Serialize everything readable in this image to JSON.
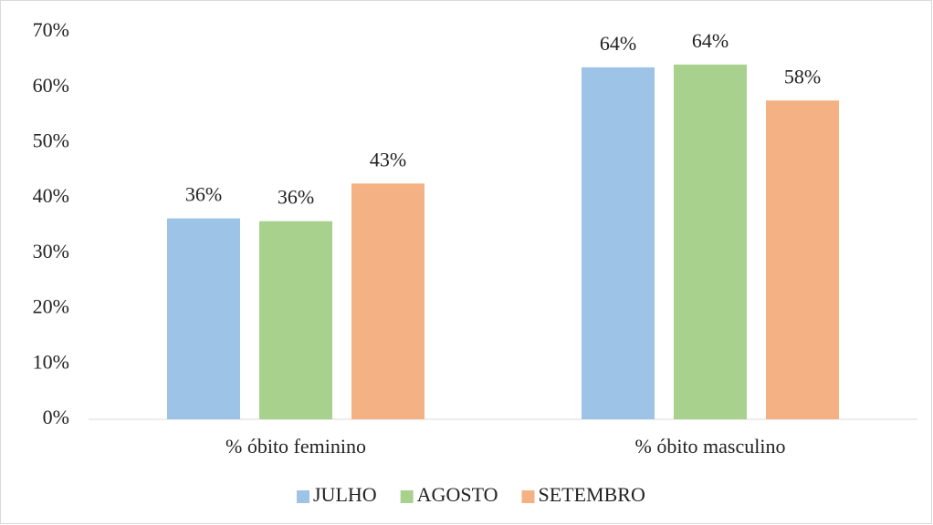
{
  "chart_data": {
    "type": "bar",
    "categories": [
      "% óbito feminino",
      "% óbito masculino"
    ],
    "series": [
      {
        "name": "JULHO",
        "color": "#9dc3e6",
        "values": [
          36.3,
          63.6
        ],
        "value_labels": [
          "36%",
          "64%"
        ]
      },
      {
        "name": "AGOSTO",
        "color": "#a9d18e",
        "values": [
          35.8,
          64.1
        ],
        "value_labels": [
          "36%",
          "64%"
        ]
      },
      {
        "name": "SETEMBRO",
        "color": "#f4b183",
        "values": [
          42.6,
          57.6
        ],
        "value_labels": [
          "43%",
          "58%"
        ]
      }
    ],
    "ylim": [
      0,
      70
    ],
    "yticks": [
      {
        "value": 0,
        "label": "0%"
      },
      {
        "value": 10,
        "label": "10%"
      },
      {
        "value": 20,
        "label": "20%"
      },
      {
        "value": 30,
        "label": "30%"
      },
      {
        "value": 40,
        "label": "40%"
      },
      {
        "value": 50,
        "label": "50%"
      },
      {
        "value": 60,
        "label": "60%"
      },
      {
        "value": 70,
        "label": "70%"
      }
    ],
    "grid": false,
    "legend": "bottom"
  }
}
